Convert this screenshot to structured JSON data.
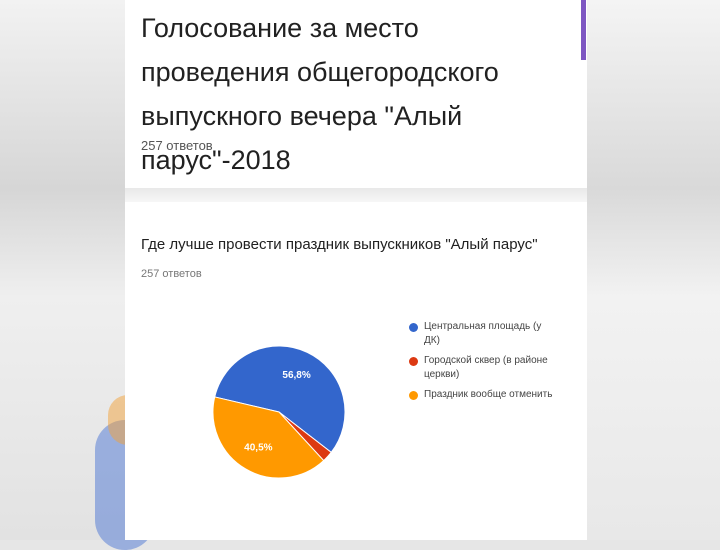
{
  "form": {
    "title": "Голосование за место проведения общегородского выпускного вечера \"Алый парус\"-2018",
    "responses": "257 ответов"
  },
  "question": {
    "text": "Где лучше провести праздник выпускников \"Алый парус\"",
    "responses": "257 ответов"
  },
  "chart_data": {
    "type": "pie",
    "title": "Где лучше провести праздник выпускников \"Алый парус\"",
    "slices": [
      {
        "label": "Центральная площадь (у ДК)",
        "value": 56.8,
        "display": "56,8%",
        "color": "#3366cc"
      },
      {
        "label": "Городской сквер (в районе церкви)",
        "value": 2.7,
        "display": "",
        "color": "#dc3912"
      },
      {
        "label": "Праздник вообще отменить",
        "value": 40.5,
        "display": "40,5%",
        "color": "#ff9900"
      }
    ],
    "legend_position": "right"
  }
}
